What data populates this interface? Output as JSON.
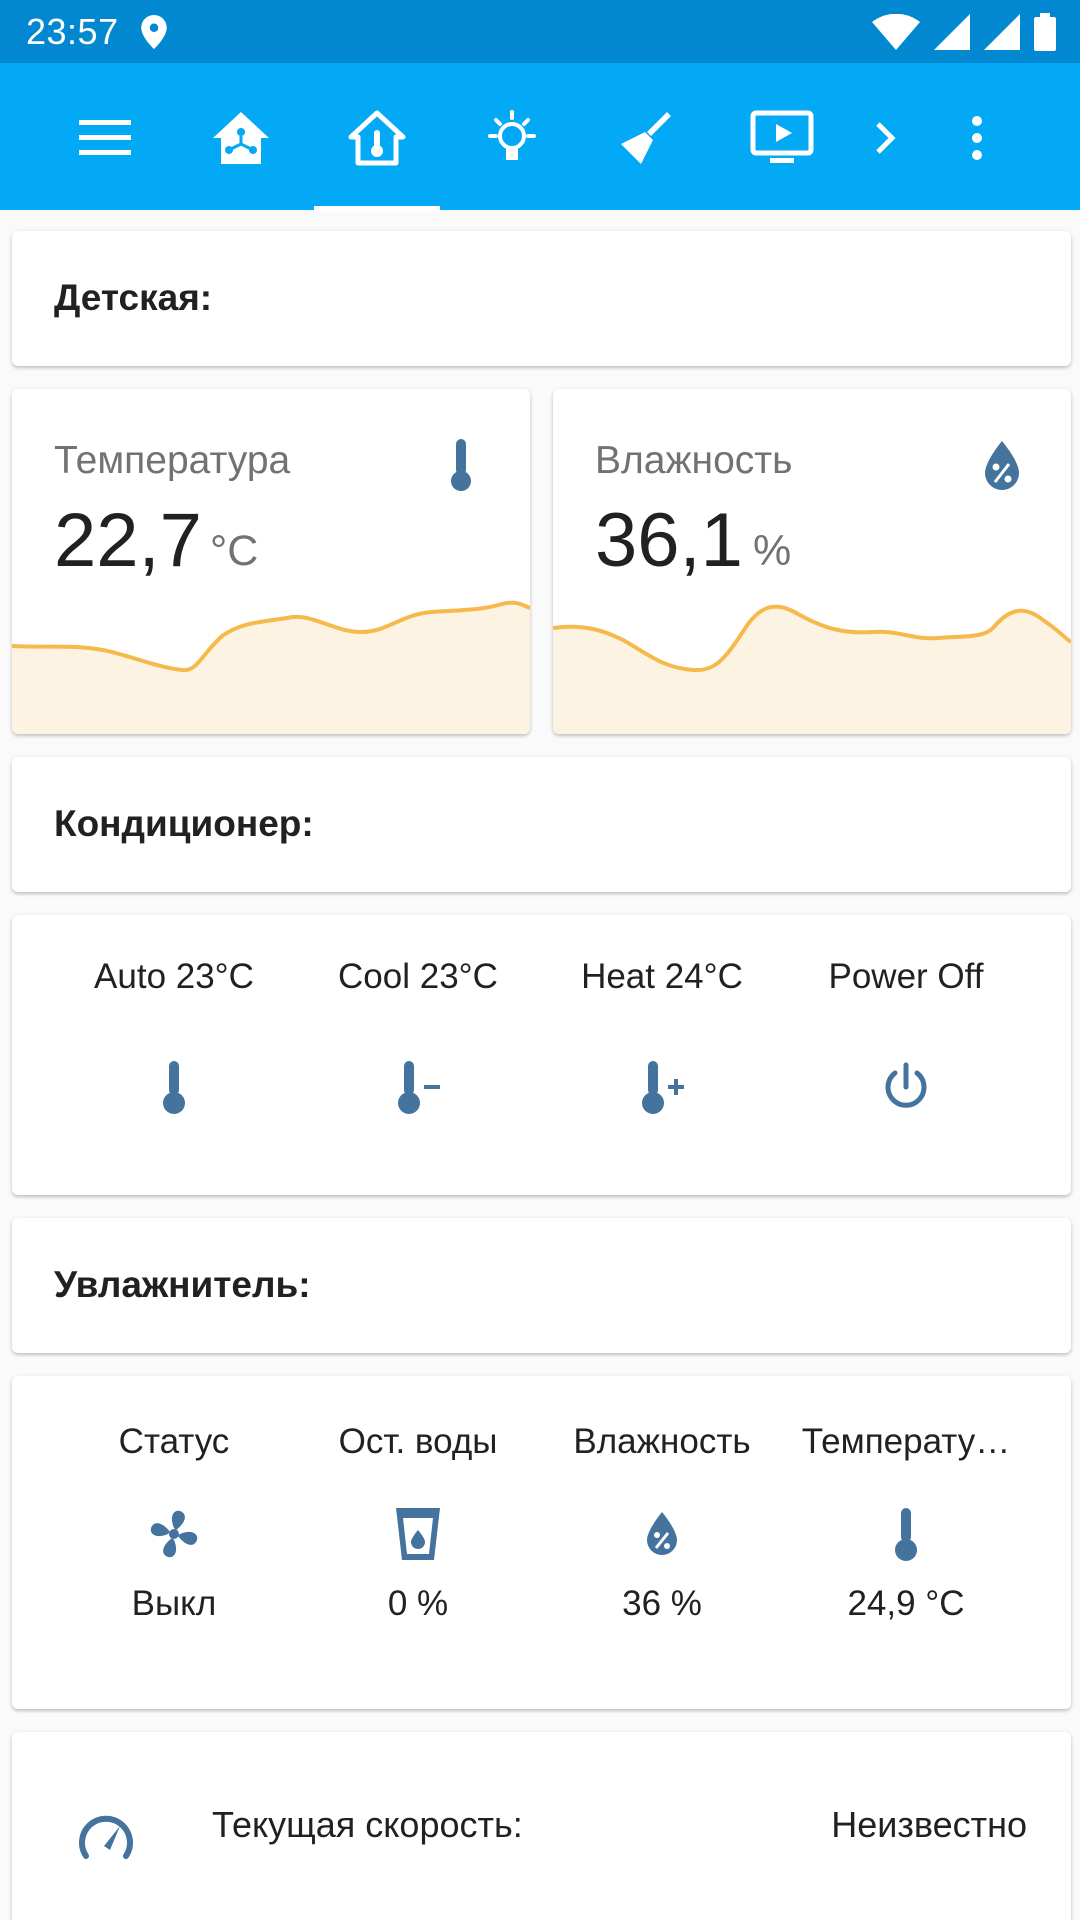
{
  "status_bar": {
    "time": "23:57",
    "icons": [
      "location-icon",
      "wifi-icon",
      "signal-icon",
      "signal-icon",
      "battery-icon"
    ]
  },
  "app_bar": {
    "tabs": [
      "menu-icon",
      "home-network-icon",
      "home-thermometer-icon",
      "lightbulb-icon",
      "broom-icon",
      "tv-play-icon",
      "chevron-right-icon",
      "more-vert-icon"
    ],
    "active_tab": "home-thermometer-icon",
    "colors": {
      "status": "#0288d1",
      "header": "#03a9f4",
      "icon": "#44739e",
      "graph": "#f6b94c"
    }
  },
  "room": {
    "title": "Детская:"
  },
  "temperature": {
    "name": "Температура",
    "value": "22,7",
    "unit": "°C",
    "icon": "thermometer-icon"
  },
  "humidity": {
    "name": "Влажность",
    "value": "36,1",
    "unit": "%",
    "icon": "water-percent-icon"
  },
  "ac": {
    "title": "Кондиционер:",
    "buttons": [
      {
        "label": "Auto 23°C",
        "icon": "thermometer-icon"
      },
      {
        "label": "Cool 23°C",
        "icon": "thermometer-minus-icon"
      },
      {
        "label": "Heat 24°C",
        "icon": "thermometer-plus-icon"
      },
      {
        "label": "Power Off",
        "icon": "power-icon"
      }
    ]
  },
  "humidifier": {
    "title": "Увлажнитель:",
    "entities": [
      {
        "label": "Статус",
        "value": "Выкл",
        "icon": "fan-icon"
      },
      {
        "label": "Ост. воды",
        "value": "0 %",
        "icon": "cup-water-icon"
      },
      {
        "label": "Влажность",
        "value": "36 %",
        "icon": "water-percent-icon"
      },
      {
        "label": "Температу…",
        "value": "24,9 °C",
        "icon": "thermometer-icon"
      }
    ]
  },
  "speed": {
    "label": "Текущая скорость:",
    "value": "Неизвестно",
    "icon": "speedometer-icon"
  }
}
